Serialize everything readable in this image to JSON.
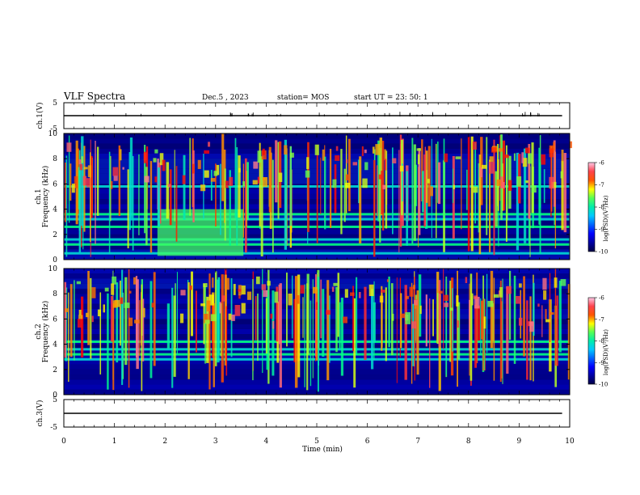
{
  "header": {
    "title": "VLF Spectra",
    "date": "Dec.5 , 2023",
    "station": "station= MOS",
    "start": "start  UT =   23: 50: 1"
  },
  "chart_data": [
    {
      "type": "line",
      "name": "ch1-voltage",
      "ylabel": "ch.1(V)",
      "ylim": [
        -5,
        5
      ],
      "yticks": [
        "5",
        "-5"
      ],
      "xlim": [
        0,
        10
      ],
      "series": [
        {
          "values_description_free": true,
          "x": [
            0,
            9.85
          ],
          "y": [
            0,
            0
          ]
        }
      ]
    },
    {
      "type": "heatmap",
      "name": "ch1-spectrogram",
      "ylabel": "ch.1\nFrequency (kHz)",
      "ylim": [
        0,
        10
      ],
      "yticks": [
        "0",
        "2",
        "4",
        "6",
        "8",
        "10"
      ],
      "xlim": [
        0,
        9.85
      ],
      "noise_bands_khz": [
        0.5,
        1.2,
        1.6,
        2.6,
        3.2,
        3.6,
        5.8
      ],
      "enhanced_segment": {
        "x": [
          1.85,
          3.55
        ],
        "y": [
          0.3,
          4.0
        ]
      }
    },
    {
      "type": "heatmap",
      "name": "ch2-spectrogram",
      "ylabel": "ch.2\nFrequency (kHz)",
      "ylim": [
        0,
        10
      ],
      "yticks": [
        "0",
        "2",
        "4",
        "6",
        "8",
        "10"
      ],
      "xlim": [
        0,
        9.85
      ],
      "noise_bands_khz": [
        2.8,
        3.2,
        3.6,
        4.2
      ]
    },
    {
      "type": "line",
      "name": "ch3-voltage",
      "ylabel": "ch.3(V)",
      "ylim": [
        -5,
        5
      ],
      "yticks": [
        "5",
        "-5"
      ],
      "xlim": [
        0,
        10
      ],
      "series": [
        {
          "x": [
            0,
            9.85
          ],
          "y": [
            0,
            0
          ]
        }
      ]
    }
  ],
  "x_axis": {
    "label": "Time (min)",
    "ticks": [
      "0",
      "1",
      "2",
      "3",
      "4",
      "5",
      "6",
      "7",
      "8",
      "9",
      "10"
    ]
  },
  "colorbar": {
    "label": "log(PSD)(V²/Hz)",
    "ticks": [
      "-6",
      "-7",
      "-8",
      "-9",
      "-10"
    ],
    "range": [
      -10,
      -6
    ]
  },
  "colors": {
    "background": "#000040",
    "low": "#0000ff",
    "mid": "#00ff80",
    "high": "#ff0000"
  }
}
